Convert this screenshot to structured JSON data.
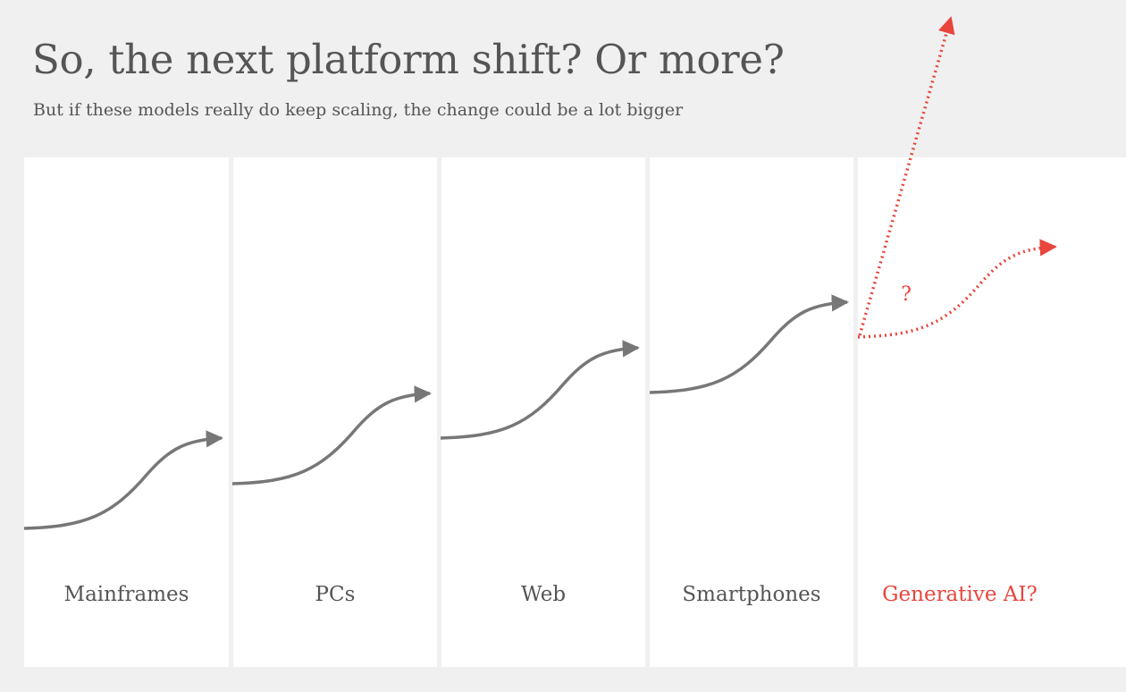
{
  "header": {
    "title": "So, the next platform shift? Or more?",
    "subtitle": "But if these models really do keep scaling, the change could be a lot bigger"
  },
  "eras": [
    {
      "label": "Mainframes"
    },
    {
      "label": "PCs"
    },
    {
      "label": "Web"
    },
    {
      "label": "Smartphones"
    },
    {
      "label": "Generative AI?",
      "highlight": true
    }
  ],
  "future_marker": "?",
  "colors": {
    "curve": "#777777",
    "highlight": "#e8453c",
    "background": "#f0f0f0",
    "panel": "#ffffff",
    "text": "#555555"
  }
}
